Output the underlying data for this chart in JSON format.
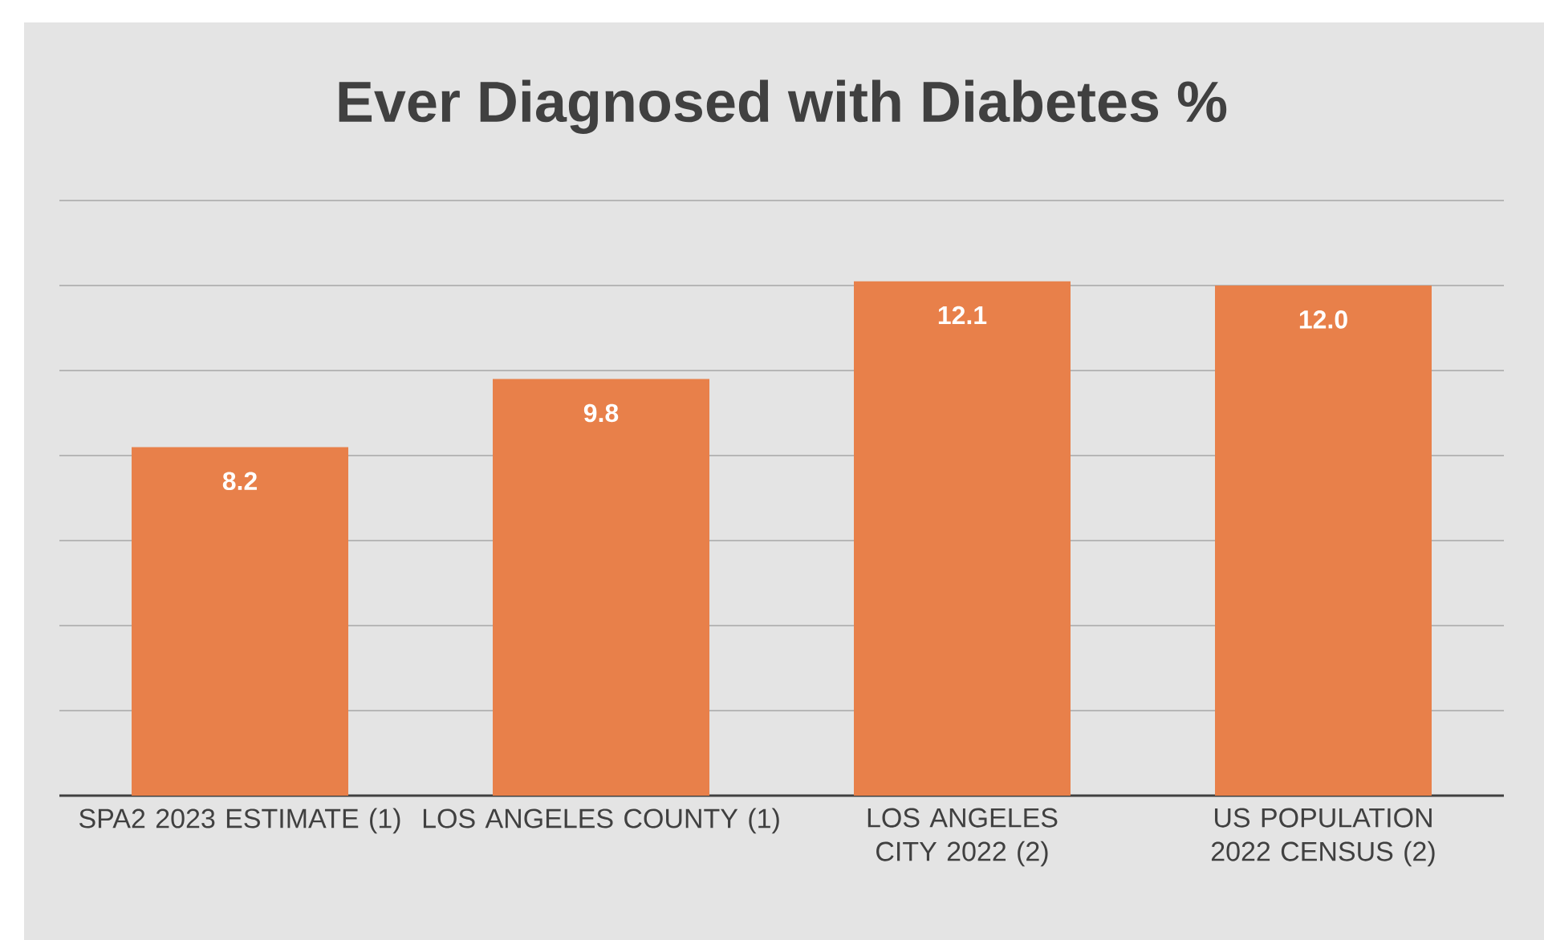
{
  "chart_data": {
    "type": "bar",
    "title": "Ever Diagnosed with Diabetes  %",
    "categories": [
      "SPA2 2023 ESTIMATE (1)",
      "LOS ANGELES COUNTY (1)",
      "LOS ANGELES CITY 2022 (2)",
      "US POPULATION 2022 CENSUS  (2)"
    ],
    "values": [
      8.2,
      9.8,
      12.1,
      12.0
    ],
    "value_labels": [
      "8.2",
      "9.8",
      "12.1",
      "12.0"
    ],
    "color": "#e8804a",
    "ylim": [
      0,
      14
    ],
    "yticks": [
      {
        "value": 0,
        "label": null
      },
      {
        "value": 2,
        "label": null
      },
      {
        "value": 4,
        "label": null
      },
      {
        "value": 6,
        "label": null
      },
      {
        "value": 8,
        "label": null
      },
      {
        "value": 10,
        "label": null
      },
      {
        "value": 12,
        "label": null
      },
      {
        "value": 14,
        "label": null
      }
    ],
    "tick_labels": "x",
    "grid": "y"
  }
}
